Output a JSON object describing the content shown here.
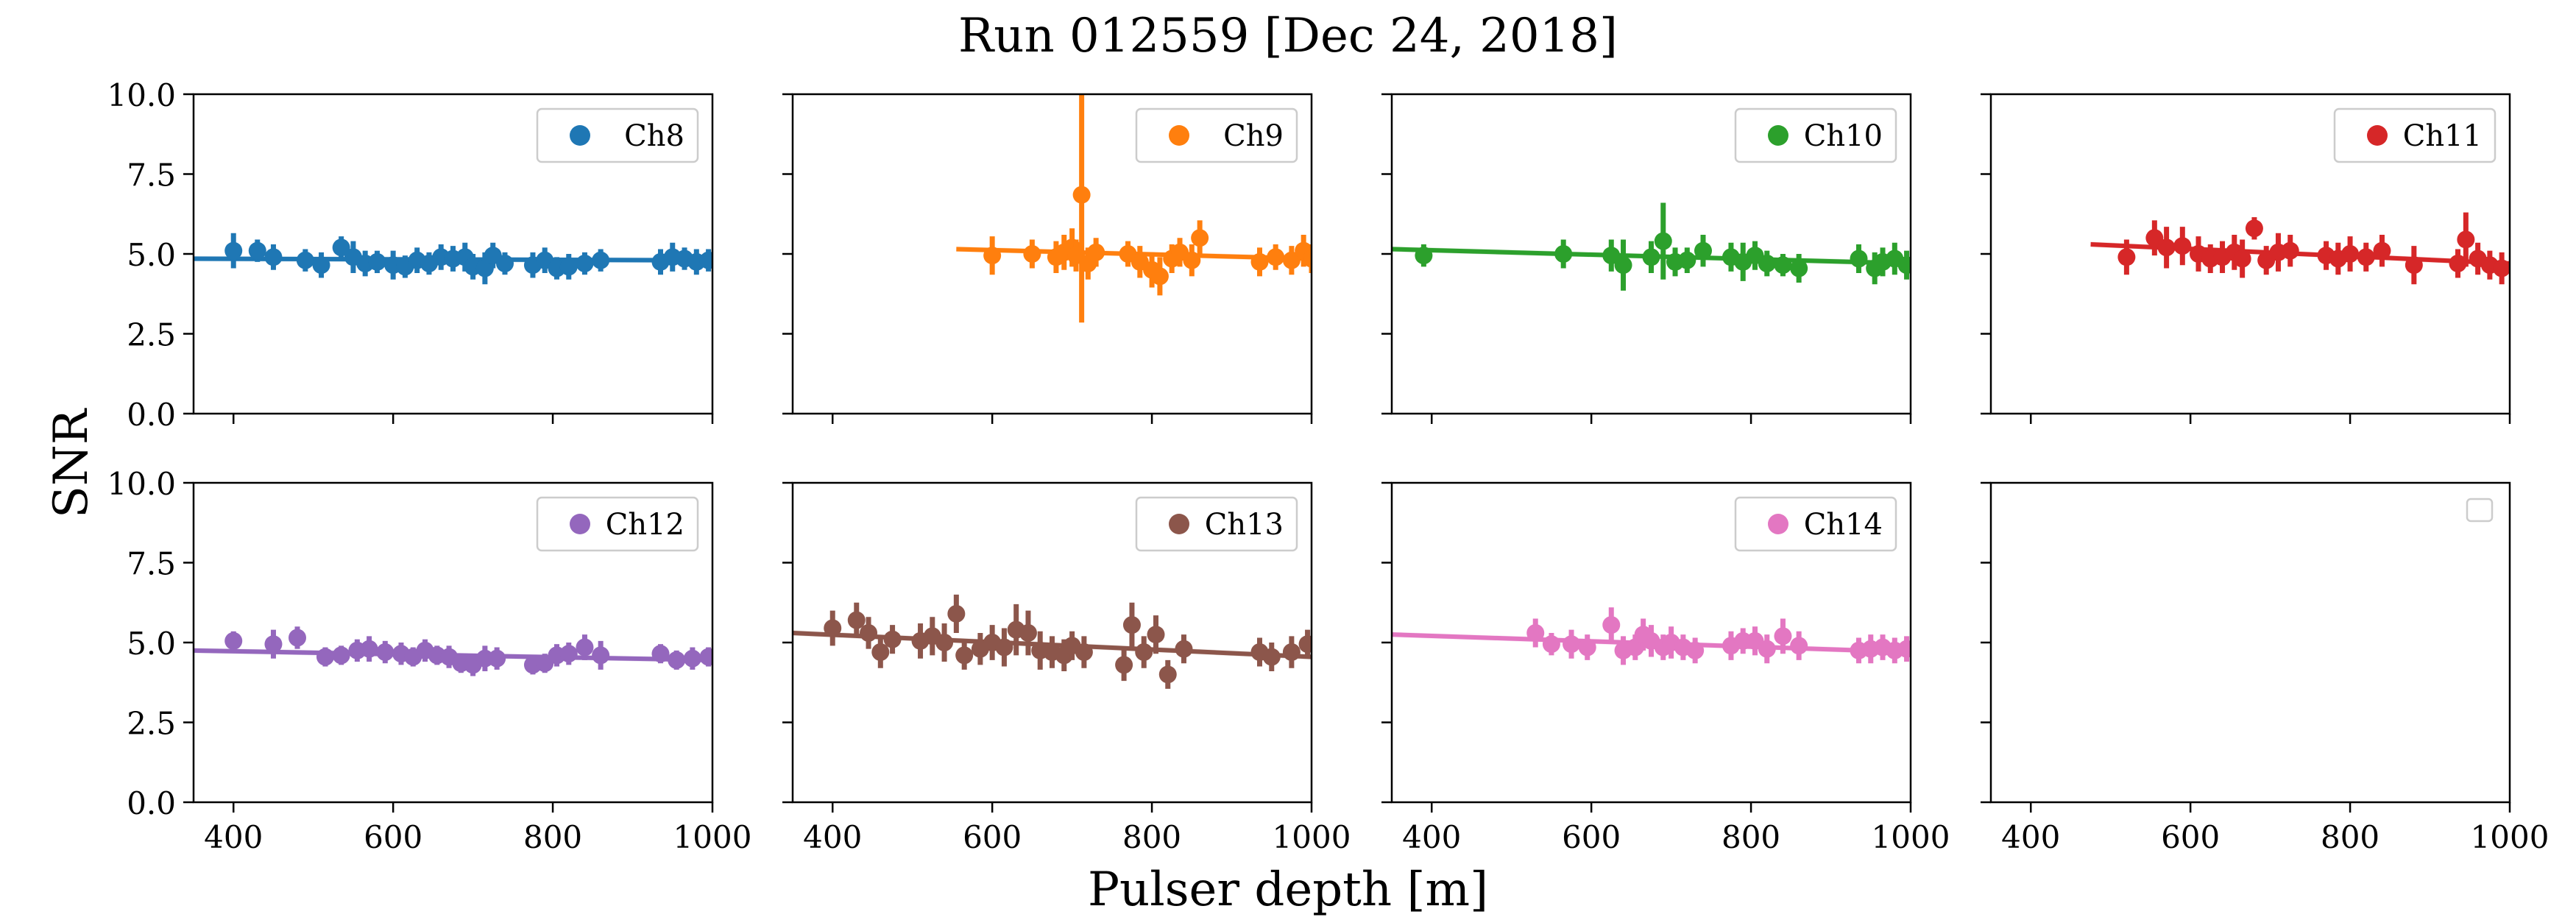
{
  "figure": {
    "title": "Run 012559 [Dec 24, 2018]",
    "xlabel": "Pulser depth [m]",
    "ylabel": "SNR"
  },
  "chart_data": {
    "type": "scatter",
    "title": "Run 012559 [Dec 24, 2018]",
    "xlabel": "Pulser depth [m]",
    "ylabel": "SNR",
    "xlim": [
      350,
      1000
    ],
    "ylim": [
      0,
      10
    ],
    "x_ticks": [
      400,
      600,
      800,
      1000
    ],
    "y_ticks": [
      0.0,
      2.5,
      5.0,
      7.5,
      10.0
    ],
    "y_tick_labels": [
      "0.0",
      "2.5",
      "5.0",
      "7.5",
      "10.0"
    ],
    "grid": false,
    "legend_position": "top-right",
    "panels": [
      {
        "name": "Ch8",
        "color": "#1f77b4",
        "fit": [
          [
            350,
            4.85
          ],
          [
            1000,
            4.8
          ]
        ],
        "points": [
          [
            400,
            5.1,
            0.55
          ],
          [
            430,
            5.1,
            0.35
          ],
          [
            450,
            4.9,
            0.4
          ],
          [
            490,
            4.8,
            0.35
          ],
          [
            510,
            4.65,
            0.4
          ],
          [
            535,
            5.2,
            0.35
          ],
          [
            550,
            4.9,
            0.5
          ],
          [
            565,
            4.7,
            0.4
          ],
          [
            580,
            4.75,
            0.35
          ],
          [
            600,
            4.65,
            0.45
          ],
          [
            615,
            4.6,
            0.35
          ],
          [
            630,
            4.8,
            0.4
          ],
          [
            645,
            4.7,
            0.35
          ],
          [
            660,
            4.9,
            0.4
          ],
          [
            675,
            4.85,
            0.4
          ],
          [
            690,
            4.9,
            0.45
          ],
          [
            700,
            4.6,
            0.4
          ],
          [
            715,
            4.55,
            0.5
          ],
          [
            725,
            4.95,
            0.4
          ],
          [
            740,
            4.7,
            0.35
          ],
          [
            775,
            4.65,
            0.4
          ],
          [
            790,
            4.8,
            0.4
          ],
          [
            805,
            4.55,
            0.35
          ],
          [
            820,
            4.6,
            0.4
          ],
          [
            840,
            4.7,
            0.35
          ],
          [
            860,
            4.8,
            0.35
          ],
          [
            935,
            4.75,
            0.4
          ],
          [
            950,
            4.9,
            0.45
          ],
          [
            965,
            4.85,
            0.35
          ],
          [
            980,
            4.75,
            0.4
          ],
          [
            995,
            4.8,
            0.35
          ]
        ]
      },
      {
        "name": "Ch9",
        "color": "#ff7f0e",
        "fit": [
          [
            555,
            5.15
          ],
          [
            1000,
            4.85
          ]
        ],
        "points": [
          [
            600,
            4.95,
            0.6
          ],
          [
            650,
            5.0,
            0.45
          ],
          [
            680,
            4.9,
            0.5
          ],
          [
            690,
            5.05,
            0.55
          ],
          [
            700,
            5.2,
            0.6
          ],
          [
            705,
            4.95,
            0.5
          ],
          [
            712,
            6.85,
            4.0
          ],
          [
            720,
            4.7,
            0.5
          ],
          [
            730,
            5.05,
            0.45
          ],
          [
            770,
            5.0,
            0.4
          ],
          [
            785,
            4.75,
            0.5
          ],
          [
            800,
            4.5,
            0.55
          ],
          [
            810,
            4.3,
            0.6
          ],
          [
            825,
            4.85,
            0.45
          ],
          [
            835,
            5.05,
            0.45
          ],
          [
            850,
            4.8,
            0.5
          ],
          [
            860,
            5.5,
            0.55
          ],
          [
            935,
            4.75,
            0.45
          ],
          [
            955,
            4.9,
            0.4
          ],
          [
            975,
            4.8,
            0.45
          ],
          [
            990,
            5.1,
            0.5
          ],
          [
            1000,
            4.85,
            0.45
          ]
        ]
      },
      {
        "name": "Ch10",
        "color": "#2ca02c",
        "fit": [
          [
            350,
            5.15
          ],
          [
            1000,
            4.7
          ]
        ],
        "points": [
          [
            390,
            4.95,
            0.35
          ],
          [
            565,
            5.0,
            0.45
          ],
          [
            625,
            4.95,
            0.5
          ],
          [
            640,
            4.65,
            0.8
          ],
          [
            675,
            4.9,
            0.5
          ],
          [
            690,
            5.4,
            1.2
          ],
          [
            705,
            4.75,
            0.45
          ],
          [
            720,
            4.8,
            0.4
          ],
          [
            740,
            5.1,
            0.5
          ],
          [
            775,
            4.9,
            0.45
          ],
          [
            790,
            4.75,
            0.6
          ],
          [
            805,
            4.95,
            0.45
          ],
          [
            820,
            4.7,
            0.4
          ],
          [
            840,
            4.65,
            0.35
          ],
          [
            860,
            4.55,
            0.45
          ],
          [
            935,
            4.85,
            0.45
          ],
          [
            955,
            4.55,
            0.5
          ],
          [
            965,
            4.75,
            0.45
          ],
          [
            980,
            4.85,
            0.5
          ],
          [
            995,
            4.65,
            0.45
          ]
        ]
      },
      {
        "name": "Ch11",
        "color": "#d62728",
        "fit": [
          [
            475,
            5.3
          ],
          [
            1000,
            4.7
          ]
        ],
        "points": [
          [
            520,
            4.9,
            0.55
          ],
          [
            555,
            5.5,
            0.55
          ],
          [
            570,
            5.2,
            0.65
          ],
          [
            590,
            5.25,
            0.6
          ],
          [
            610,
            5.0,
            0.55
          ],
          [
            625,
            4.85,
            0.45
          ],
          [
            640,
            4.9,
            0.5
          ],
          [
            655,
            5.05,
            0.55
          ],
          [
            665,
            4.85,
            0.6
          ],
          [
            680,
            5.8,
            0.35
          ],
          [
            695,
            4.8,
            0.45
          ],
          [
            710,
            5.05,
            0.6
          ],
          [
            725,
            5.1,
            0.5
          ],
          [
            770,
            4.95,
            0.45
          ],
          [
            785,
            4.85,
            0.5
          ],
          [
            800,
            5.0,
            0.55
          ],
          [
            820,
            4.9,
            0.45
          ],
          [
            840,
            5.1,
            0.5
          ],
          [
            880,
            4.65,
            0.6
          ],
          [
            935,
            4.7,
            0.45
          ],
          [
            945,
            5.45,
            0.85
          ],
          [
            960,
            4.85,
            0.5
          ],
          [
            975,
            4.65,
            0.45
          ],
          [
            990,
            4.55,
            0.5
          ]
        ]
      },
      {
        "name": "Ch12",
        "color": "#9467bd",
        "fit": [
          [
            350,
            4.75
          ],
          [
            1000,
            4.45
          ]
        ],
        "points": [
          [
            400,
            5.05,
            0.3
          ],
          [
            450,
            4.95,
            0.45
          ],
          [
            480,
            5.15,
            0.35
          ],
          [
            515,
            4.55,
            0.3
          ],
          [
            535,
            4.6,
            0.3
          ],
          [
            555,
            4.75,
            0.35
          ],
          [
            570,
            4.8,
            0.4
          ],
          [
            590,
            4.7,
            0.35
          ],
          [
            610,
            4.65,
            0.35
          ],
          [
            625,
            4.55,
            0.3
          ],
          [
            640,
            4.75,
            0.35
          ],
          [
            655,
            4.6,
            0.3
          ],
          [
            670,
            4.55,
            0.35
          ],
          [
            685,
            4.35,
            0.3
          ],
          [
            700,
            4.3,
            0.35
          ],
          [
            715,
            4.5,
            0.4
          ],
          [
            730,
            4.5,
            0.35
          ],
          [
            775,
            4.3,
            0.3
          ],
          [
            790,
            4.35,
            0.3
          ],
          [
            805,
            4.6,
            0.35
          ],
          [
            820,
            4.65,
            0.35
          ],
          [
            840,
            4.85,
            0.4
          ],
          [
            860,
            4.6,
            0.45
          ],
          [
            935,
            4.65,
            0.3
          ],
          [
            955,
            4.45,
            0.3
          ],
          [
            975,
            4.5,
            0.35
          ],
          [
            995,
            4.55,
            0.3
          ]
        ]
      },
      {
        "name": "Ch13",
        "color": "#8c564b",
        "fit": [
          [
            350,
            5.3
          ],
          [
            1000,
            4.55
          ]
        ],
        "points": [
          [
            400,
            5.45,
            0.55
          ],
          [
            430,
            5.7,
            0.55
          ],
          [
            445,
            5.3,
            0.5
          ],
          [
            460,
            4.7,
            0.5
          ],
          [
            475,
            5.1,
            0.45
          ],
          [
            510,
            5.05,
            0.55
          ],
          [
            525,
            5.2,
            0.6
          ],
          [
            540,
            5.0,
            0.6
          ],
          [
            555,
            5.9,
            0.6
          ],
          [
            565,
            4.6,
            0.45
          ],
          [
            585,
            4.8,
            0.5
          ],
          [
            600,
            5.0,
            0.55
          ],
          [
            615,
            4.85,
            0.6
          ],
          [
            630,
            5.4,
            0.8
          ],
          [
            645,
            5.3,
            0.7
          ],
          [
            660,
            4.75,
            0.6
          ],
          [
            675,
            4.7,
            0.5
          ],
          [
            690,
            4.6,
            0.5
          ],
          [
            700,
            4.9,
            0.45
          ],
          [
            715,
            4.7,
            0.5
          ],
          [
            765,
            4.3,
            0.5
          ],
          [
            775,
            5.55,
            0.7
          ],
          [
            790,
            4.7,
            0.5
          ],
          [
            805,
            5.25,
            0.6
          ],
          [
            820,
            4.0,
            0.45
          ],
          [
            840,
            4.8,
            0.45
          ],
          [
            935,
            4.7,
            0.45
          ],
          [
            950,
            4.55,
            0.45
          ],
          [
            975,
            4.7,
            0.5
          ],
          [
            995,
            4.95,
            0.45
          ]
        ]
      },
      {
        "name": "Ch14",
        "color": "#e377c2",
        "fit": [
          [
            350,
            5.25
          ],
          [
            1000,
            4.7
          ]
        ],
        "points": [
          [
            530,
            5.3,
            0.45
          ],
          [
            550,
            4.95,
            0.35
          ],
          [
            575,
            4.95,
            0.45
          ],
          [
            595,
            4.85,
            0.4
          ],
          [
            625,
            5.55,
            0.55
          ],
          [
            640,
            4.75,
            0.45
          ],
          [
            655,
            4.85,
            0.4
          ],
          [
            665,
            5.25,
            0.5
          ],
          [
            675,
            5.05,
            0.5
          ],
          [
            690,
            4.85,
            0.4
          ],
          [
            700,
            5.0,
            0.5
          ],
          [
            715,
            4.85,
            0.4
          ],
          [
            730,
            4.75,
            0.4
          ],
          [
            775,
            4.9,
            0.45
          ],
          [
            790,
            5.05,
            0.4
          ],
          [
            805,
            5.05,
            0.45
          ],
          [
            820,
            4.8,
            0.45
          ],
          [
            840,
            5.2,
            0.55
          ],
          [
            860,
            4.9,
            0.45
          ],
          [
            935,
            4.75,
            0.4
          ],
          [
            950,
            4.8,
            0.45
          ],
          [
            965,
            4.85,
            0.4
          ],
          [
            980,
            4.75,
            0.4
          ],
          [
            995,
            4.8,
            0.4
          ]
        ]
      },
      {
        "name": "",
        "color": "",
        "fit": [],
        "points": [],
        "empty_legend": true
      }
    ]
  }
}
